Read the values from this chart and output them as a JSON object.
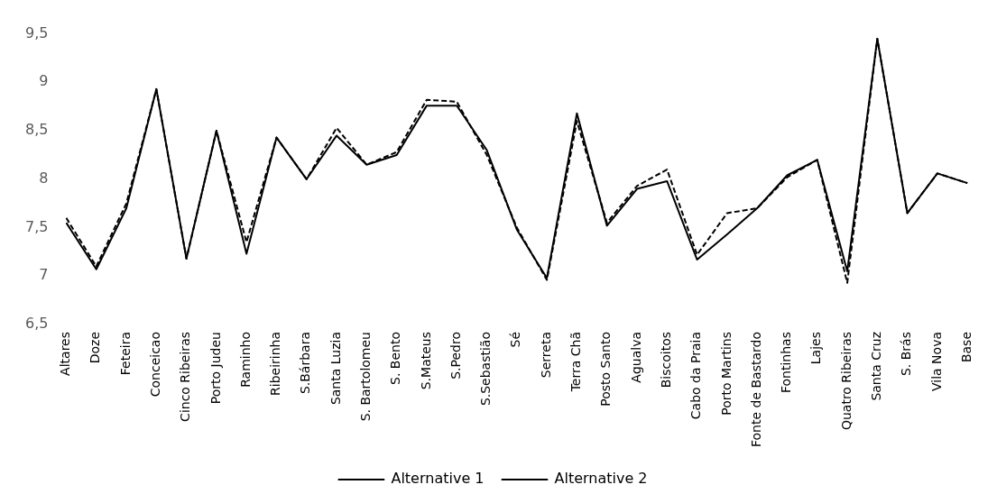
{
  "chart_data": {
    "type": "line",
    "categories": [
      "Altares",
      "Doze",
      "Feteira",
      "Conceicao",
      "Cinco Ribeiras",
      "Porto Judeu",
      "Raminho",
      "Ribeirinha",
      "S.Bárbara",
      "Santa Luzia",
      "S. Bartolomeu",
      "S. Bento",
      "S.Mateus",
      "S.Pedro",
      "S.Sebastião",
      "Sé",
      "Serreta",
      "Terra Chã",
      "Posto Santo",
      "Agualva",
      "Biscoitos",
      "Cabo da Praia",
      "Porto Martins",
      "Fonte de Bastardo",
      "Fontinhas",
      "Lajes",
      "Quatro Ribeiras",
      "Santa Cruz",
      "S. Brás",
      "Vila Nova",
      "Base"
    ],
    "series": [
      {
        "name": "Alternative 1",
        "color": "#000000",
        "line_style": "solid",
        "values": [
          7.55,
          7.07,
          7.7,
          8.93,
          7.18,
          8.5,
          7.23,
          8.43,
          8.0,
          8.45,
          8.15,
          8.25,
          8.76,
          8.76,
          8.3,
          7.48,
          6.98,
          8.68,
          7.52,
          7.9,
          7.98,
          7.17,
          7.43,
          7.7,
          8.04,
          8.2,
          7.05,
          9.45,
          7.65,
          8.06,
          7.96
        ]
      },
      {
        "name": "Alternative 2",
        "color": "#000000",
        "line_style": "dashed",
        "values": [
          7.6,
          7.1,
          7.75,
          8.93,
          7.18,
          8.5,
          7.35,
          8.43,
          8.0,
          8.53,
          8.15,
          8.28,
          8.82,
          8.8,
          8.25,
          7.5,
          6.96,
          8.6,
          7.55,
          7.93,
          8.1,
          7.22,
          7.65,
          7.7,
          8.02,
          8.2,
          6.93,
          9.45,
          7.65,
          8.06,
          7.96
        ]
      }
    ],
    "ylim": [
      6.5,
      9.5
    ],
    "yticks": [
      {
        "value": 6.5,
        "label": "6,5"
      },
      {
        "value": 7,
        "label": "7"
      },
      {
        "value": 7.5,
        "label": "7,5"
      },
      {
        "value": 8,
        "label": "8"
      },
      {
        "value": 8.5,
        "label": "8,5"
      },
      {
        "value": 9,
        "label": "9"
      },
      {
        "value": 9.5,
        "label": "9,5"
      }
    ],
    "grid": false,
    "legend": "bottom",
    "marker": "none"
  }
}
